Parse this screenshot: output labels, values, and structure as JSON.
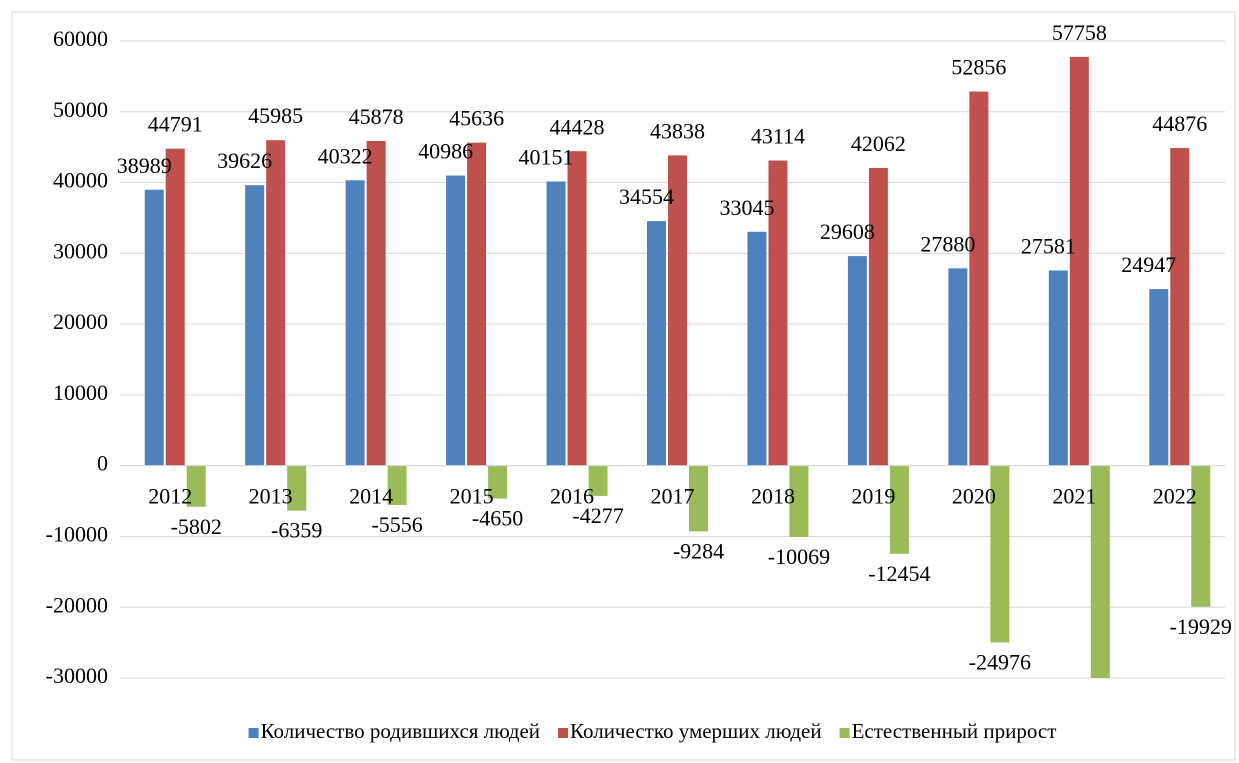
{
  "chart_data": {
    "type": "bar",
    "categories": [
      "2012",
      "2013",
      "2014",
      "2015",
      "2016",
      "2017",
      "2018",
      "2019",
      "2020",
      "2021",
      "2022"
    ],
    "series": [
      {
        "name": "Количество родившихся людей",
        "color": "#4f81bd",
        "values": [
          38989,
          39626,
          40322,
          40986,
          40151,
          34554,
          33045,
          29608,
          27880,
          27581,
          24947
        ]
      },
      {
        "name": "Количестко умерших людей",
        "color": "#c0504d",
        "values": [
          44791,
          45985,
          45878,
          45636,
          44428,
          43838,
          43114,
          42062,
          52856,
          57758,
          44876
        ]
      },
      {
        "name": "Естественный прирост",
        "color": "#9bbb59",
        "values": [
          -5802,
          -6359,
          -5556,
          -4650,
          -4277,
          -9284,
          -10069,
          -12454,
          -24976,
          -30177,
          -19929
        ]
      }
    ],
    "ylim": [
      -30000,
      60000
    ],
    "yticks": [
      -30000,
      -20000,
      -10000,
      0,
      10000,
      20000,
      30000,
      40000,
      50000,
      60000
    ],
    "grid": true,
    "legend": "bottom"
  }
}
